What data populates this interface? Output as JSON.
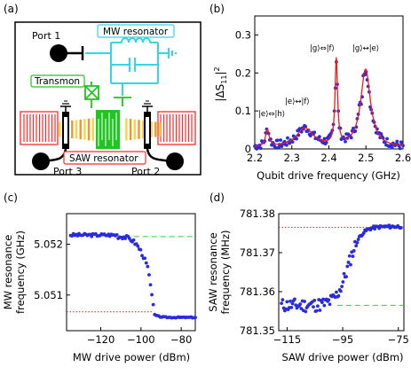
{
  "panel_a": {
    "label": "(a)",
    "port1": "Port 1",
    "port2": "Port 2",
    "port3": "Port 3",
    "mw_resonator": "MW resonator",
    "transmon": "Transmon",
    "saw_resonator": "SAW resonator",
    "colors": {
      "mw": "#33d6e6",
      "transmon": "#22c322",
      "saw": "#ff2a2a",
      "ground": "#000000",
      "idt_yellow": "#f7d22a",
      "idt_orange": "#f08a1c"
    }
  },
  "panel_b": {
    "label": "(b)",
    "ylabel_main": "|ΔS",
    "ylabel_sub": "11",
    "ylabel_end": "|",
    "ylabel_sup": "2",
    "xlabel": "Qubit drive frequency (GHz)",
    "ann_e_h": "|e⟩⇔|h⟩",
    "ann_e_f": "|e⟩↔|f⟩",
    "ann_g_f": "|g⟩⇔|f⟩",
    "ann_g_e": "|g⟩↔|e⟩"
  },
  "panel_c": {
    "label": "(c)",
    "ylabel_line1": "MW resonance",
    "ylabel_line2": "frequency (GHz)",
    "xlabel": "MW drive power (dBm)"
  },
  "panel_d": {
    "label": "(d)",
    "ylabel_line1": "SAW resonance",
    "ylabel_line2": "frequency (MHz)",
    "xlabel": "SAW drive power (dBm)"
  },
  "chart_data": [
    {
      "panel": "b",
      "type": "scatter",
      "xlabel": "Qubit drive frequency (GHz)",
      "ylabel": "|ΔS11|^2",
      "xlim": [
        2.2,
        2.6
      ],
      "ylim": [
        0,
        0.35
      ],
      "xticks": [
        2.2,
        2.3,
        2.4,
        2.5,
        2.6
      ],
      "xtick_labels": [
        "2.2",
        "2.3",
        "2.4",
        "2.5",
        "2.6"
      ],
      "yticks": [
        0,
        0.1,
        0.2,
        0.3
      ],
      "ytick_labels": [
        "0",
        "0.1",
        "0.2",
        "0.3"
      ],
      "series": [
        {
          "kind": "points",
          "color": "#2a2ae0"
        },
        {
          "kind": "fit",
          "color": "#e81c1c",
          "peaks": [
            {
              "x0": 2.234,
              "amp": 0.045,
              "w": 0.006
            },
            {
              "x0": 2.335,
              "amp": 0.05,
              "w": 0.028
            },
            {
              "x0": 2.42,
              "amp": 0.225,
              "w": 0.004
            },
            {
              "x0": 2.499,
              "amp": 0.205,
              "w": 0.016
            }
          ],
          "baseline": 0.003
        }
      ]
    },
    {
      "panel": "c",
      "type": "scatter",
      "xlabel": "MW drive power (dBm)",
      "ylabel": "MW resonance frequency (GHz)",
      "xlim": [
        -137,
        -73
      ],
      "ylim": [
        5.0503,
        5.0526
      ],
      "xticks": [
        -120,
        -100,
        -80
      ],
      "xtick_labels": [
        "−120",
        "−100",
        "−80"
      ],
      "yticks": [
        5.051,
        5.052
      ],
      "ytick_labels": [
        "5.051",
        "5.052"
      ],
      "hlines": [
        {
          "y": 5.05215,
          "color": "#2bd62b",
          "style": "dashed",
          "xmin": -108
        },
        {
          "y": 5.05067,
          "color": "#e81c1c",
          "style": "dotted",
          "xmax": -94
        }
      ],
      "series": [
        {
          "kind": "points",
          "color": "#2a2ae0"
        }
      ]
    },
    {
      "panel": "d",
      "type": "scatter",
      "xlabel": "SAW drive power (dBm)",
      "ylabel": "SAW resonance frequency (MHz)",
      "xlim": [
        -118,
        -73
      ],
      "ylim": [
        781.35,
        781.38
      ],
      "xticks": [
        -115,
        -95,
        -75
      ],
      "xtick_labels": [
        "−115",
        "−95",
        "−75"
      ],
      "yticks": [
        781.35,
        781.36,
        781.37,
        781.38
      ],
      "ytick_labels": [
        "781.35",
        "781.36",
        "781.37",
        "781.38"
      ],
      "hlines": [
        {
          "y": 781.3765,
          "color": "#e81c1c",
          "style": "dotted"
        },
        {
          "y": 781.3565,
          "color": "#2bd62b",
          "style": "dashed",
          "xmin": -97
        }
      ],
      "series": [
        {
          "kind": "points",
          "color": "#2a2ae0"
        }
      ]
    }
  ]
}
